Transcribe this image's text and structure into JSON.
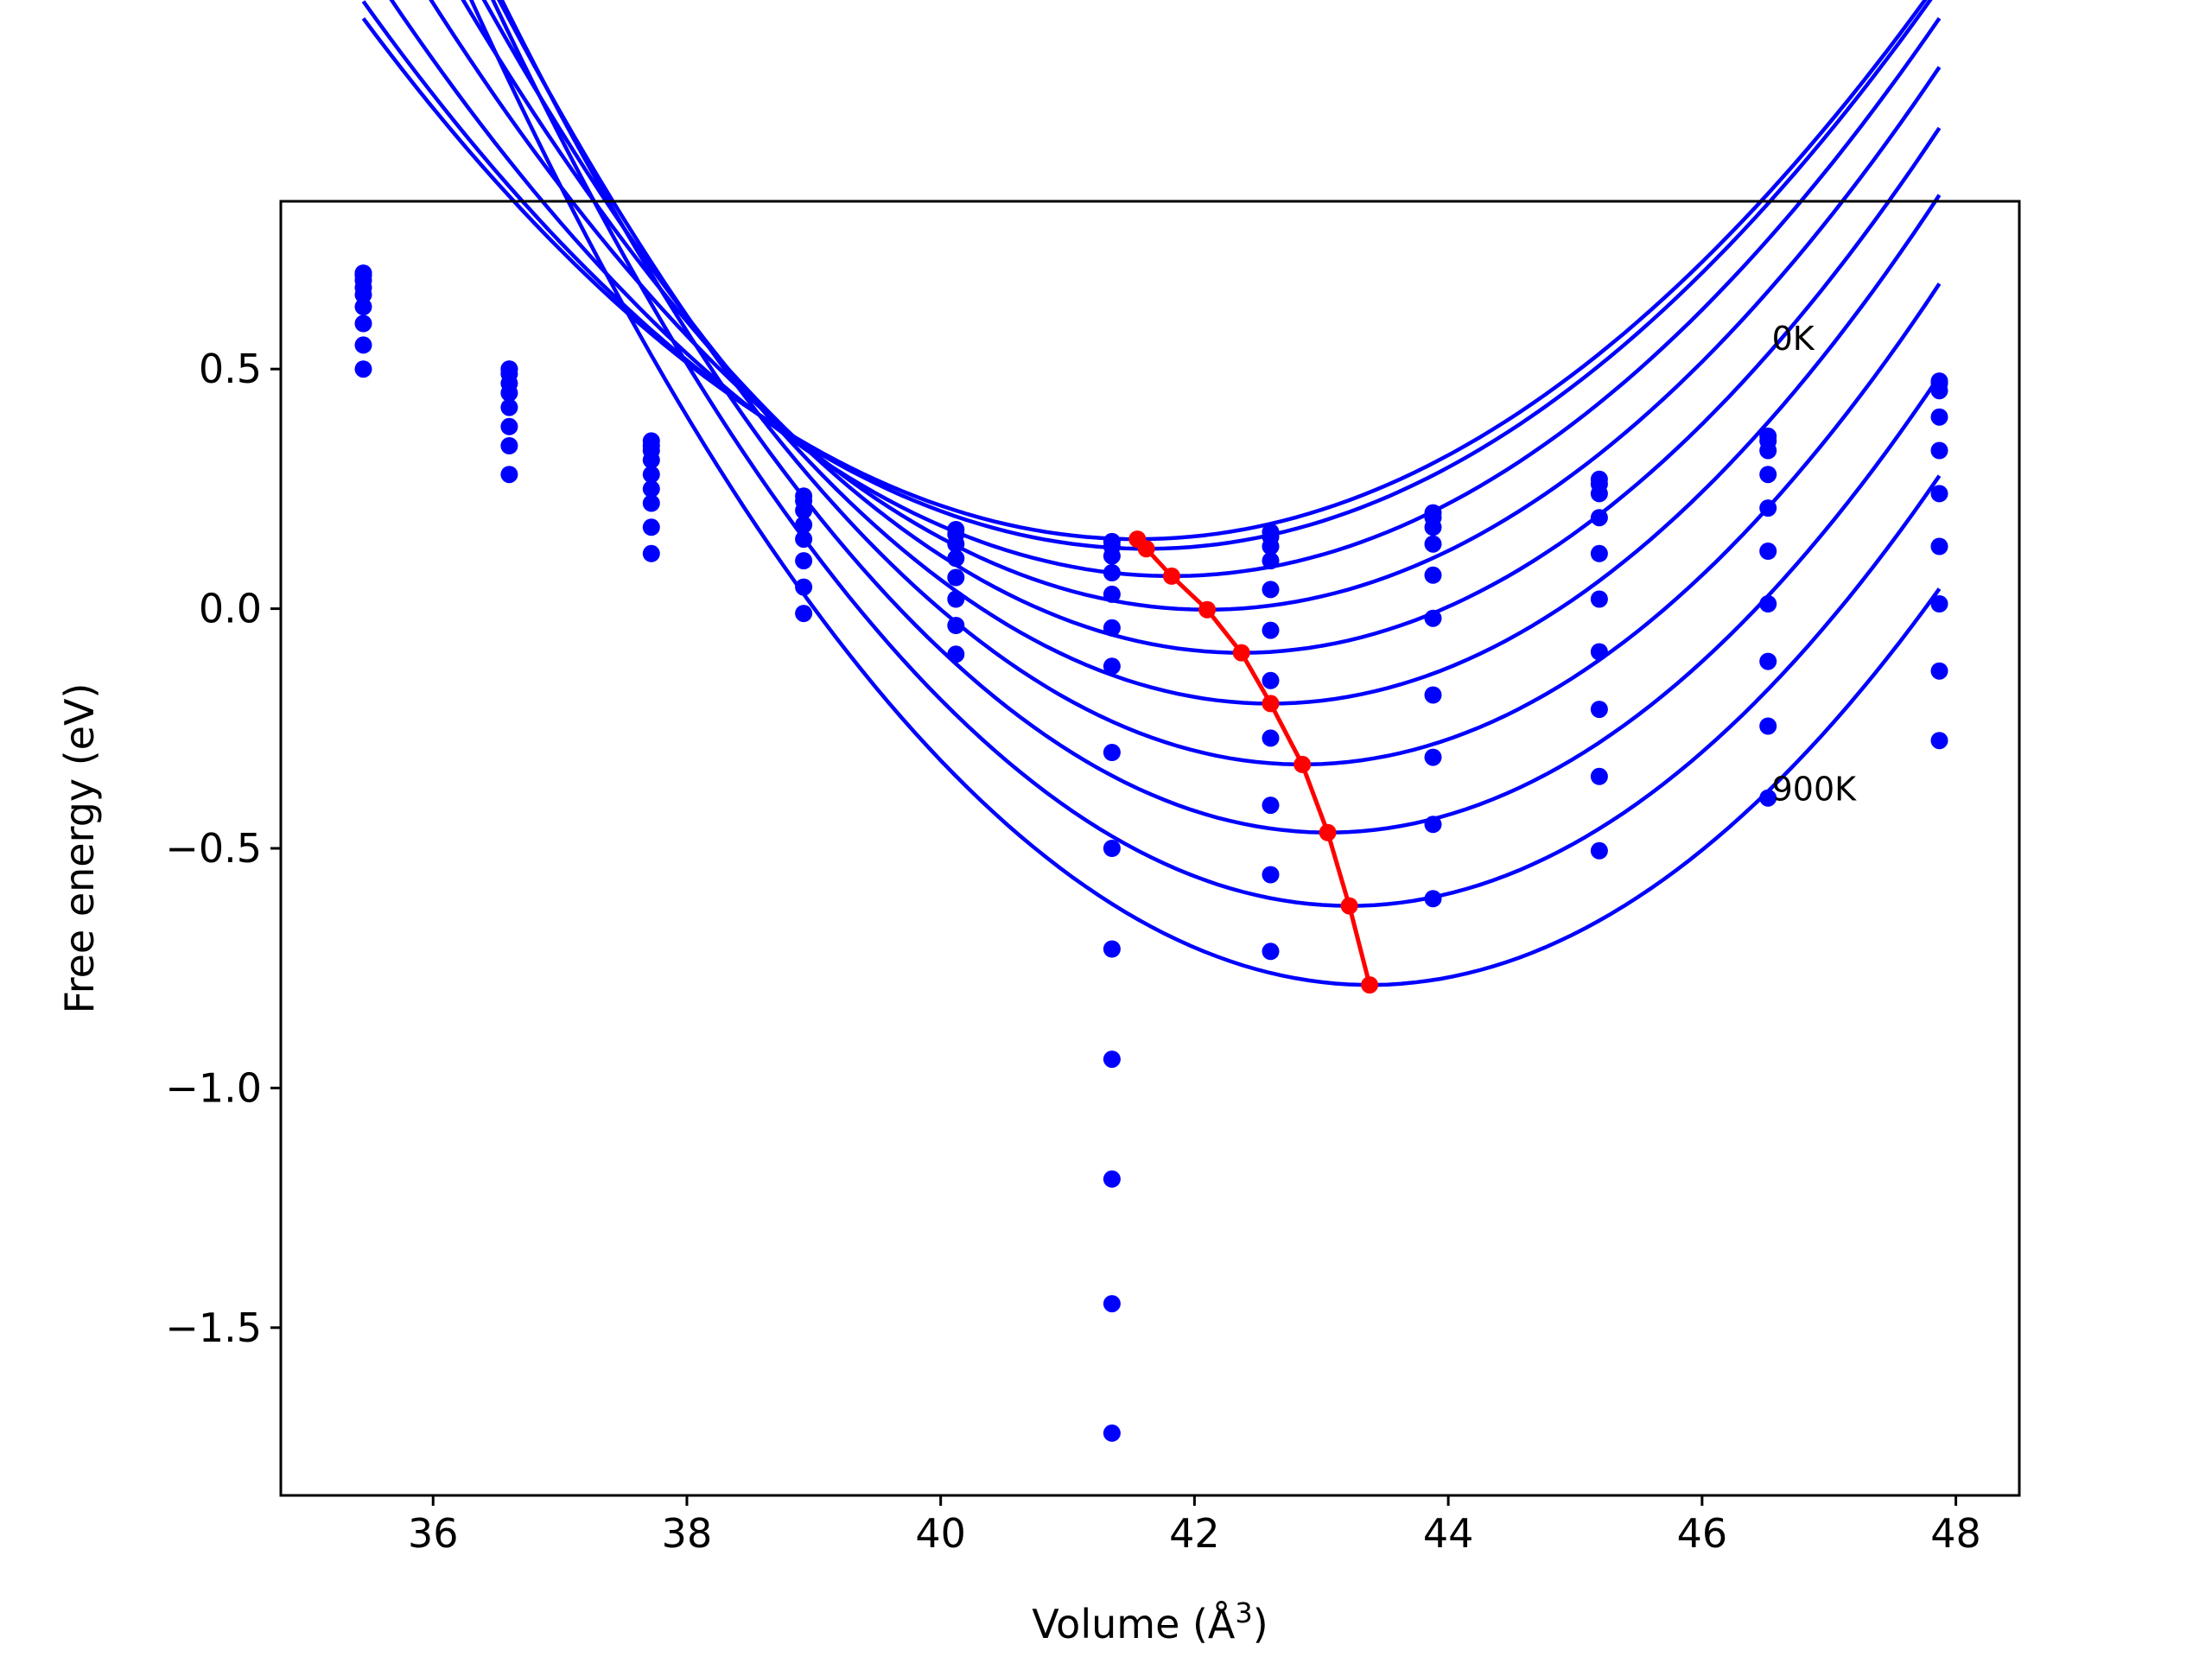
{
  "chart_data": {
    "type": "scatter",
    "xlabel": "Volume (Å",
    "xlabel_sup": "3",
    "xlabel_close": ")",
    "ylabel": "Free energy (eV)",
    "xlim": [
      34.8,
      48.5
    ],
    "ylim": [
      -1.85,
      0.85
    ],
    "xticks": [
      36,
      38,
      40,
      42,
      44,
      46,
      48
    ],
    "yticks": [
      0.5,
      0.0,
      -0.5,
      -1.0,
      -1.5
    ],
    "xtick_labels": [
      "36",
      "38",
      "40",
      "42",
      "44",
      "46",
      "48"
    ],
    "ytick_labels": [
      "0.5",
      "0.0",
      "−0.5",
      "−1.0",
      "−1.5"
    ],
    "grid": false,
    "colors": {
      "data": "#0000ff",
      "minima": "#ff0000",
      "axes": "#000000"
    },
    "annotations": [
      {
        "text": "0K",
        "x": 46.55,
        "y": 0.54
      },
      {
        "text": "900K",
        "x": 46.55,
        "y": -0.4
      }
    ],
    "volumes": [
      35.45,
      36.6,
      37.72,
      38.92,
      40.12,
      41.35,
      42.6,
      43.88,
      45.19,
      46.52,
      47.87
    ],
    "series": [
      {
        "values": [
          0.7,
          0.5,
          0.35,
          0.235,
          0.165,
          0.14,
          0.16,
          0.2,
          0.27,
          0.36,
          0.475
        ]
      },
      {
        "values": [
          0.7,
          0.5,
          0.34,
          0.225,
          0.155,
          0.13,
          0.15,
          0.19,
          0.26,
          0.35,
          0.47
        ]
      },
      {
        "values": [
          0.695,
          0.49,
          0.33,
          0.205,
          0.135,
          0.11,
          0.13,
          0.17,
          0.24,
          0.33,
          0.455
        ]
      },
      {
        "values": [
          0.685,
          0.47,
          0.31,
          0.175,
          0.105,
          0.075,
          0.1,
          0.135,
          0.19,
          0.28,
          0.4
        ]
      },
      {
        "values": [
          0.67,
          0.45,
          0.28,
          0.145,
          0.065,
          0.03,
          0.04,
          0.07,
          0.115,
          0.21,
          0.33
        ]
      },
      {
        "values": [
          0.655,
          0.42,
          0.25,
          0.1,
          0.02,
          -0.04,
          -0.045,
          -0.02,
          0.02,
          0.12,
          0.24
        ]
      },
      {
        "values": [
          0.63,
          0.38,
          0.22,
          0.045,
          -0.035,
          -0.12,
          -0.15,
          -0.18,
          -0.09,
          0.01,
          0.13
        ]
      },
      {
        "values": [
          0.595,
          0.34,
          0.17,
          -0.01,
          -0.095,
          -0.3,
          -0.27,
          -0.31,
          -0.21,
          -0.11,
          0.01
        ]
      },
      {
        "values": [
          0.55,
          0.28,
          0.115,
          null,
          null,
          -0.5,
          -0.41,
          -0.45,
          -0.35,
          -0.245,
          -0.13
        ]
      },
      {
        "values": [
          0.5,
          null,
          null,
          null,
          null,
          -0.71,
          -0.555,
          -0.605,
          -0.505,
          -0.395,
          -0.275
        ]
      }
    ],
    "extra_points": [
      {
        "x": 41.35,
        "y": -0.94
      },
      {
        "x": 41.35,
        "y": -1.19
      },
      {
        "x": 41.35,
        "y": -1.45
      },
      {
        "x": 41.35,
        "y": -1.72
      },
      {
        "x": 42.6,
        "y": -0.715
      }
    ],
    "fit_curves": [
      {
        "min_x": 41.55,
        "min_y": 0.145,
        "a": 0.0292
      },
      {
        "min_x": 41.62,
        "min_y": 0.125,
        "a": 0.03
      },
      {
        "min_x": 41.82,
        "min_y": 0.068,
        "a": 0.0318
      },
      {
        "min_x": 42.1,
        "min_y": -0.002,
        "a": 0.034
      },
      {
        "min_x": 42.37,
        "min_y": -0.092,
        "a": 0.0362
      },
      {
        "min_x": 42.6,
        "min_y": -0.198,
        "a": 0.0382
      },
      {
        "min_x": 42.85,
        "min_y": -0.325,
        "a": 0.0398
      },
      {
        "min_x": 43.05,
        "min_y": -0.467,
        "a": 0.041
      },
      {
        "min_x": 43.22,
        "min_y": -0.62,
        "a": 0.0415
      },
      {
        "min_x": 43.38,
        "min_y": -0.785,
        "a": 0.041
      }
    ]
  }
}
